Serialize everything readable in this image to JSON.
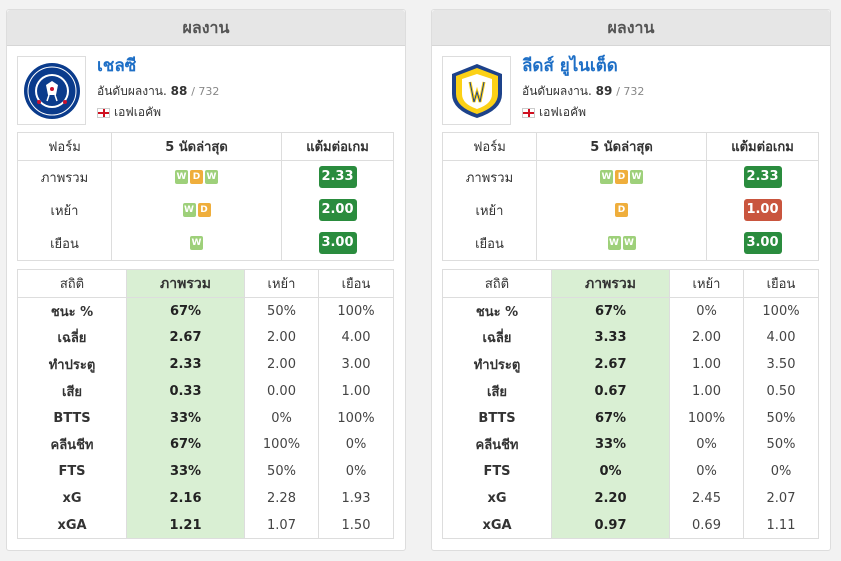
{
  "panels": [
    {
      "header": "ผลงาน",
      "team": {
        "name": "เชลซี",
        "rank_label": "อันดับผลงาน.",
        "rank": "88",
        "rank_total": "/ 732",
        "league": "เอฟเอคัพ",
        "logo": "chelsea-crest"
      },
      "form_headers": [
        "ฟอร์ม",
        "5 นัดล่าสุด",
        "แต้มต่อเกม"
      ],
      "form_rows": [
        {
          "label": "ภาพรวม",
          "results": [
            "W",
            "D",
            "W"
          ],
          "ppg": "2.33",
          "ppg_color": "green"
        },
        {
          "label": "เหย้า",
          "results": [
            "W",
            "D"
          ],
          "ppg": "2.00",
          "ppg_color": "green"
        },
        {
          "label": "เยือน",
          "results": [
            "W"
          ],
          "ppg": "3.00",
          "ppg_color": "green"
        }
      ],
      "stats_headers": [
        "สถิติ",
        "ภาพรวม",
        "เหย้า",
        "เยือน"
      ],
      "stats_rows": [
        {
          "label": "ชนะ %",
          "overall": "67%",
          "home": "50%",
          "away": "100%"
        },
        {
          "label": "เฉลี่ย",
          "overall": "2.67",
          "home": "2.00",
          "away": "4.00"
        },
        {
          "label": "ทำประตู",
          "overall": "2.33",
          "home": "2.00",
          "away": "3.00"
        },
        {
          "label": "เสีย",
          "overall": "0.33",
          "home": "0.00",
          "away": "1.00"
        },
        {
          "label": "BTTS",
          "overall": "33%",
          "home": "0%",
          "away": "100%"
        },
        {
          "label": "คลีนชีท",
          "overall": "67%",
          "home": "100%",
          "away": "0%"
        },
        {
          "label": "FTS",
          "overall": "33%",
          "home": "50%",
          "away": "0%"
        },
        {
          "label": "xG",
          "overall": "2.16",
          "home": "2.28",
          "away": "1.93"
        },
        {
          "label": "xGA",
          "overall": "1.21",
          "home": "1.07",
          "away": "1.50"
        }
      ]
    },
    {
      "header": "ผลงาน",
      "team": {
        "name": "ลีดส์ ยูไนเต็ด",
        "rank_label": "อันดับผลงาน.",
        "rank": "89",
        "rank_total": "/ 732",
        "league": "เอฟเอคัพ",
        "logo": "leeds-crest"
      },
      "form_headers": [
        "ฟอร์ม",
        "5 นัดล่าสุด",
        "แต้มต่อเกม"
      ],
      "form_rows": [
        {
          "label": "ภาพรวม",
          "results": [
            "W",
            "D",
            "W"
          ],
          "ppg": "2.33",
          "ppg_color": "green"
        },
        {
          "label": "เหย้า",
          "results": [
            "D"
          ],
          "ppg": "1.00",
          "ppg_color": "red"
        },
        {
          "label": "เยือน",
          "results": [
            "W",
            "W"
          ],
          "ppg": "3.00",
          "ppg_color": "green"
        }
      ],
      "stats_headers": [
        "สถิติ",
        "ภาพรวม",
        "เหย้า",
        "เยือน"
      ],
      "stats_rows": [
        {
          "label": "ชนะ %",
          "overall": "67%",
          "home": "0%",
          "away": "100%"
        },
        {
          "label": "เฉลี่ย",
          "overall": "3.33",
          "home": "2.00",
          "away": "4.00"
        },
        {
          "label": "ทำประตู",
          "overall": "2.67",
          "home": "1.00",
          "away": "3.50"
        },
        {
          "label": "เสีย",
          "overall": "0.67",
          "home": "1.00",
          "away": "0.50"
        },
        {
          "label": "BTTS",
          "overall": "67%",
          "home": "100%",
          "away": "50%"
        },
        {
          "label": "คลีนชีท",
          "overall": "33%",
          "home": "0%",
          "away": "50%"
        },
        {
          "label": "FTS",
          "overall": "0%",
          "home": "0%",
          "away": "0%"
        },
        {
          "label": "xG",
          "overall": "2.20",
          "home": "2.45",
          "away": "2.07"
        },
        {
          "label": "xGA",
          "overall": "0.97",
          "home": "0.69",
          "away": "1.11"
        }
      ]
    }
  ]
}
